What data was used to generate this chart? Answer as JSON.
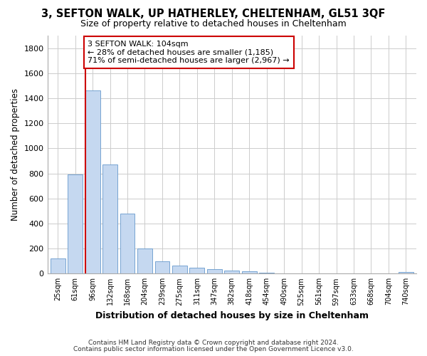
{
  "title_line1": "3, SEFTON WALK, UP HATHERLEY, CHELTENHAM, GL51 3QF",
  "title_line2": "Size of property relative to detached houses in Cheltenham",
  "xlabel": "Distribution of detached houses by size in Cheltenham",
  "ylabel": "Number of detached properties",
  "categories": [
    "25sqm",
    "61sqm",
    "96sqm",
    "132sqm",
    "168sqm",
    "204sqm",
    "239sqm",
    "275sqm",
    "311sqm",
    "347sqm",
    "382sqm",
    "418sqm",
    "454sqm",
    "490sqm",
    "525sqm",
    "561sqm",
    "597sqm",
    "633sqm",
    "668sqm",
    "704sqm",
    "740sqm"
  ],
  "values": [
    120,
    790,
    1460,
    870,
    480,
    200,
    100,
    65,
    45,
    35,
    25,
    20,
    5,
    0,
    0,
    0,
    0,
    0,
    0,
    0,
    15
  ],
  "bar_color": "#c5d8f0",
  "bar_edge_color": "#6699cc",
  "vline_x_index": 2,
  "vline_color": "#cc0000",
  "annotation_text": "3 SEFTON WALK: 104sqm\n← 28% of detached houses are smaller (1,185)\n71% of semi-detached houses are larger (2,967) →",
  "annotation_box_color": "#ffffff",
  "annotation_box_edge": "#cc0000",
  "ylim": [
    0,
    1900
  ],
  "yticks": [
    0,
    200,
    400,
    600,
    800,
    1000,
    1200,
    1400,
    1600,
    1800
  ],
  "footer_line1": "Contains HM Land Registry data © Crown copyright and database right 2024.",
  "footer_line2": "Contains public sector information licensed under the Open Government Licence v3.0.",
  "background_color": "#ffffff",
  "plot_bg_color": "#ffffff",
  "grid_color": "#cccccc"
}
